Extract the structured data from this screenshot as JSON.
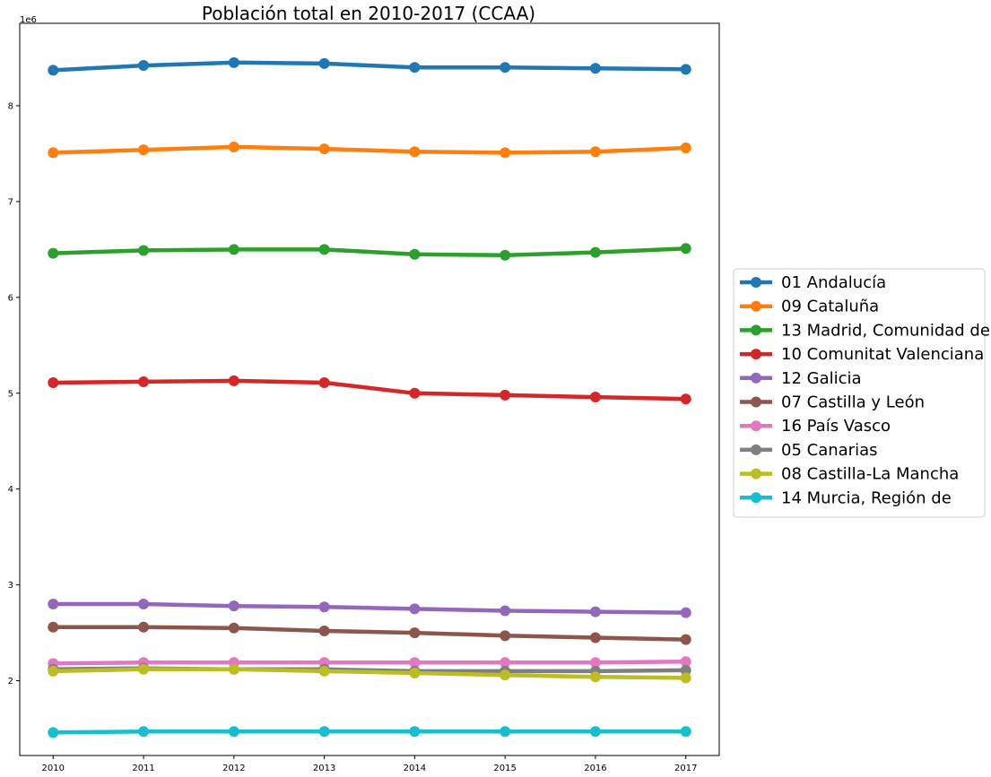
{
  "chart_data": {
    "type": "line",
    "title": "Población total en 2010-2017 (CCAA)",
    "xlabel": "",
    "ylabel": "",
    "offset_label": "1e6",
    "x": [
      "2010",
      "2011",
      "2012",
      "2013",
      "2014",
      "2015",
      "2016",
      "2017"
    ],
    "y_ticks": [
      2,
      3,
      4,
      5,
      6,
      7,
      8
    ],
    "ylim": [
      1.22,
      8.86
    ],
    "xlim": [
      2009.63,
      2017.37
    ],
    "grid": false,
    "legend_placement": "center-right-outside",
    "series": [
      {
        "name": "01 Andalucía",
        "color": "#1f77b4",
        "values": [
          8.37,
          8.42,
          8.45,
          8.44,
          8.4,
          8.4,
          8.39,
          8.38
        ]
      },
      {
        "name": "09 Cataluña",
        "color": "#ff7f0e",
        "values": [
          7.51,
          7.54,
          7.57,
          7.55,
          7.52,
          7.51,
          7.52,
          7.56
        ]
      },
      {
        "name": "13 Madrid, Comunidad de",
        "color": "#2ca02c",
        "values": [
          6.46,
          6.49,
          6.5,
          6.5,
          6.45,
          6.44,
          6.47,
          6.51
        ]
      },
      {
        "name": "10 Comunitat Valenciana",
        "color": "#d62728",
        "values": [
          5.11,
          5.12,
          5.13,
          5.11,
          5.0,
          4.98,
          4.96,
          4.94
        ]
      },
      {
        "name": "12 Galicia",
        "color": "#9467bd",
        "values": [
          2.8,
          2.8,
          2.78,
          2.77,
          2.75,
          2.73,
          2.72,
          2.71
        ]
      },
      {
        "name": "07 Castilla y León",
        "color": "#8c564b",
        "values": [
          2.56,
          2.56,
          2.55,
          2.52,
          2.5,
          2.47,
          2.45,
          2.43
        ]
      },
      {
        "name": "16 País Vasco",
        "color": "#e377c2",
        "values": [
          2.18,
          2.19,
          2.19,
          2.19,
          2.19,
          2.19,
          2.19,
          2.2
        ]
      },
      {
        "name": "05 Canarias",
        "color": "#7f7f7f",
        "values": [
          2.12,
          2.13,
          2.12,
          2.12,
          2.1,
          2.1,
          2.1,
          2.11
        ]
      },
      {
        "name": "08 Castilla-La Mancha",
        "color": "#bcbd22",
        "values": [
          2.1,
          2.12,
          2.12,
          2.1,
          2.08,
          2.06,
          2.04,
          2.03
        ]
      },
      {
        "name": "14 Murcia, Región de",
        "color": "#17becf",
        "values": [
          1.46,
          1.47,
          1.47,
          1.47,
          1.47,
          1.47,
          1.47,
          1.47
        ]
      }
    ]
  }
}
